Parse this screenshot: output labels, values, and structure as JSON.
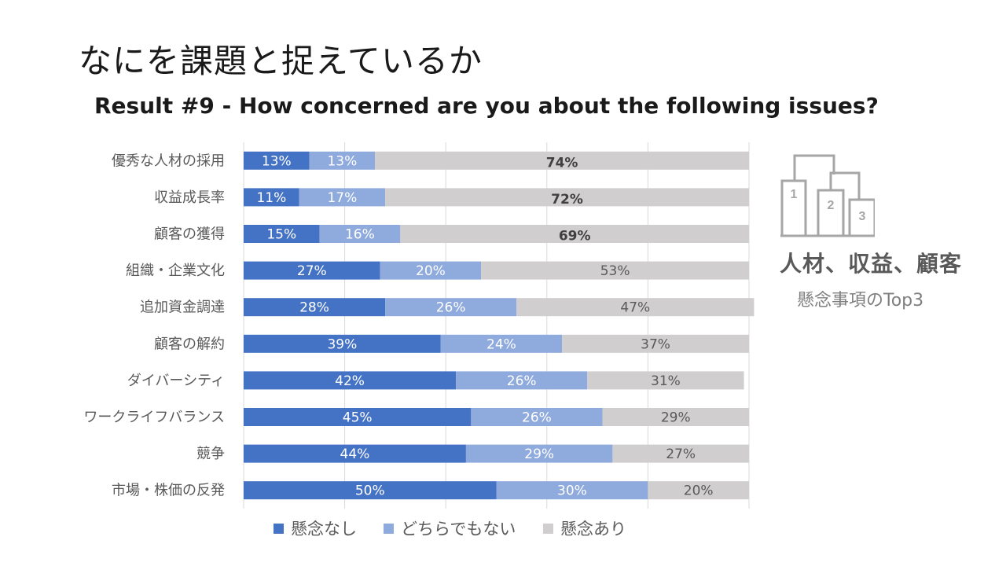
{
  "slide": {
    "title": "なにを課題と捉えているか",
    "subtitle": "Result #9 - How concerned are you about the following issues?"
  },
  "chart_data": {
    "type": "bar",
    "orientation": "horizontal",
    "stacked": "percent",
    "categories": [
      "優秀な人材の採用",
      "収益成長率",
      "顧客の獲得",
      "組織・企業文化",
      "追加資金調達",
      "顧客の解約",
      "ダイバーシティ",
      "ワークライフバランス",
      "競争",
      "市場・株価の反発"
    ],
    "series": [
      {
        "name": "懸念なし",
        "color": "#4472c4",
        "values": [
          13,
          11,
          15,
          27,
          28,
          39,
          42,
          45,
          44,
          50
        ]
      },
      {
        "name": "どちらでもない",
        "color": "#8faadc",
        "values": [
          13,
          17,
          16,
          20,
          26,
          24,
          26,
          26,
          29,
          30
        ]
      },
      {
        "name": "懸念あり",
        "color": "#d0cece",
        "values": [
          74,
          72,
          69,
          53,
          47,
          37,
          31,
          29,
          27,
          20
        ]
      }
    ],
    "value_suffix": "%",
    "emphasized_categories": [
      "優秀な人材の採用",
      "収益成長率",
      "顧客の獲得"
    ],
    "grid": true,
    "legend_position": "bottom",
    "xlim": [
      0,
      100
    ]
  },
  "side_panel": {
    "icon": "podium-icon",
    "podium_numbers": [
      "1",
      "2",
      "3"
    ],
    "headline": "人材、収益、顧客",
    "caption": "懸念事項のTop3"
  }
}
